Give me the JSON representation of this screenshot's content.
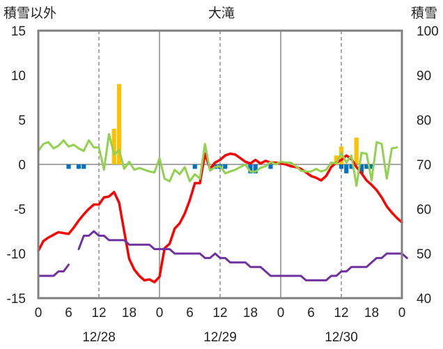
{
  "chart_data": {
    "type": "line",
    "title": "大滝",
    "y_left_label": "積雪以外",
    "y_right_label": "積雪",
    "y_left_range": [
      -15,
      15
    ],
    "y_right_range": [
      40,
      100
    ],
    "y_left_ticks": [
      "15",
      "10",
      "5",
      "0",
      "-5",
      "-10",
      "-15"
    ],
    "y_right_ticks": [
      "100",
      "90",
      "80",
      "70",
      "60",
      "50",
      "40"
    ],
    "x_range_hours": [
      0,
      72
    ],
    "x_tick_labels": [
      "0",
      "6",
      "12",
      "18",
      "0",
      "6",
      "12",
      "18",
      "0",
      "6",
      "12",
      "18",
      "0"
    ],
    "date_labels": [
      "12/28",
      "12/29",
      "12/30"
    ],
    "grid": "dashed vertical at 12h, solid vertical at day boundaries",
    "series": [
      {
        "color": "#ff0000",
        "axis": "left",
        "points": [
          [
            0,
            -9.7
          ],
          [
            1,
            -8.6
          ],
          [
            2,
            -8.2
          ],
          [
            3,
            -7.9
          ],
          [
            4,
            -7.6
          ],
          [
            5,
            -7.7
          ],
          [
            6,
            -7.8
          ],
          [
            7,
            -7.1
          ],
          [
            8,
            -6.3
          ],
          [
            9,
            -5.6
          ],
          [
            10,
            -5.0
          ],
          [
            11,
            -4.5
          ],
          [
            12,
            -4.5
          ],
          [
            13,
            -3.7
          ],
          [
            14,
            -3.6
          ],
          [
            15,
            -3.1
          ],
          [
            16,
            -4.3
          ],
          [
            17,
            -7.5
          ],
          [
            18,
            -10.6
          ],
          [
            19,
            -11.8
          ],
          [
            20,
            -12.5
          ],
          [
            21,
            -13.0
          ],
          [
            22,
            -12.9
          ],
          [
            23,
            -13.2
          ],
          [
            24,
            -12.6
          ],
          [
            25,
            -9.4
          ],
          [
            26,
            -8.9
          ],
          [
            27,
            -7.2
          ],
          [
            28,
            -6.6
          ],
          [
            29,
            -5.5
          ],
          [
            30,
            -4.0
          ],
          [
            31,
            -2.1
          ],
          [
            32,
            -2.1
          ],
          [
            33,
            1.2
          ],
          [
            34,
            -0.5
          ],
          [
            35,
            0.2
          ],
          [
            36,
            0.5
          ],
          [
            37,
            1.0
          ],
          [
            38,
            1.2
          ],
          [
            39,
            1.1
          ],
          [
            40,
            0.7
          ],
          [
            41,
            0.3
          ],
          [
            42,
            0.1
          ],
          [
            43,
            0.5
          ],
          [
            44,
            0.1
          ],
          [
            45,
            0.4
          ],
          [
            46,
            0.2
          ],
          [
            47,
            0.2
          ],
          [
            48,
            0.1
          ],
          [
            49,
            0.0
          ],
          [
            50,
            -0.2
          ],
          [
            51,
            -0.3
          ],
          [
            52,
            -0.5
          ],
          [
            53,
            -0.9
          ],
          [
            54,
            -1.3
          ],
          [
            55,
            -1.5
          ],
          [
            56,
            -1.8
          ],
          [
            57,
            -1.3
          ],
          [
            58,
            -0.3
          ],
          [
            59,
            0.2
          ],
          [
            60,
            0.5
          ],
          [
            61,
            1.0
          ],
          [
            62,
            0.6
          ],
          [
            63,
            -0.3
          ],
          [
            64,
            -1.0
          ],
          [
            65,
            -1.8
          ],
          [
            66,
            -2.3
          ],
          [
            67,
            -2.9
          ],
          [
            68,
            -3.7
          ],
          [
            69,
            -4.7
          ],
          [
            70,
            -5.4
          ],
          [
            71,
            -6.0
          ],
          [
            72,
            -6.5
          ]
        ]
      },
      {
        "color": "#92d050",
        "axis": "left",
        "points": [
          [
            0,
            1.5
          ],
          [
            1,
            2.3
          ],
          [
            2,
            2.5
          ],
          [
            3,
            1.8
          ],
          [
            4,
            2.1
          ],
          [
            5,
            2.7
          ],
          [
            6,
            2.0
          ],
          [
            7,
            2.2
          ],
          [
            8,
            1.8
          ],
          [
            9,
            1.5
          ],
          [
            10,
            2.7
          ],
          [
            11,
            1.9
          ],
          [
            12,
            1.9
          ],
          [
            13,
            -0.6
          ],
          [
            14,
            3.4
          ],
          [
            15,
            1.1
          ],
          [
            16,
            1.6
          ],
          [
            17,
            -0.5
          ],
          [
            18,
            0.3
          ],
          [
            19,
            -0.6
          ],
          [
            20,
            -0.4
          ],
          [
            21,
            -0.6
          ],
          [
            22,
            -0.8
          ],
          [
            23,
            -0.9
          ],
          [
            24,
            0.7
          ],
          [
            25,
            -1.6
          ],
          [
            26,
            -1.9
          ],
          [
            27,
            -0.6
          ],
          [
            28,
            -1.1
          ],
          [
            29,
            -0.3
          ],
          [
            30,
            -1.9
          ],
          [
            31,
            -1.1
          ],
          [
            32,
            -1.6
          ],
          [
            33,
            2.3
          ],
          [
            34,
            -0.7
          ],
          [
            35,
            -0.3
          ],
          [
            36,
            -0.2
          ],
          [
            37,
            -1.0
          ],
          [
            38,
            -0.8
          ],
          [
            39,
            -0.6
          ],
          [
            40,
            -0.3
          ],
          [
            41,
            0.0
          ],
          [
            42,
            -0.8
          ],
          [
            43,
            -0.8
          ],
          [
            44,
            -0.4
          ],
          [
            45,
            -0.2
          ],
          [
            46,
            0.3
          ],
          [
            47,
            0.0
          ],
          [
            48,
            0.3
          ],
          [
            49,
            0.2
          ],
          [
            50,
            0.2
          ],
          [
            51,
            -0.2
          ],
          [
            52,
            -0.7
          ],
          [
            53,
            -0.8
          ],
          [
            54,
            -0.8
          ],
          [
            55,
            -0.5
          ],
          [
            56,
            -0.8
          ],
          [
            57,
            -0.6
          ],
          [
            58,
            0.2
          ],
          [
            59,
            0.1
          ],
          [
            60,
            1.3
          ],
          [
            61,
            0.2
          ],
          [
            62,
            1.0
          ],
          [
            63,
            -2.4
          ],
          [
            64,
            1.3
          ],
          [
            65,
            1.2
          ],
          [
            66,
            -1.8
          ],
          [
            67,
            2.5
          ],
          [
            68,
            2.3
          ],
          [
            69,
            -1.6
          ],
          [
            70,
            1.8
          ],
          [
            71,
            1.9
          ]
        ]
      },
      {
        "color": "#7030a0",
        "axis": "right",
        "segments": [
          [
            [
              0,
              45
            ],
            [
              1,
              45
            ],
            [
              2,
              45
            ],
            [
              3,
              45
            ],
            [
              4,
              46
            ],
            [
              5,
              46
            ],
            [
              6,
              47.5
            ]
          ],
          [
            [
              8,
              51
            ],
            [
              9,
              54
            ],
            [
              10,
              54
            ],
            [
              11,
              55
            ],
            [
              12,
              54
            ],
            [
              13,
              54
            ],
            [
              14,
              53
            ],
            [
              15,
              53
            ],
            [
              16,
              53
            ],
            [
              17,
              53
            ],
            [
              18,
              52
            ],
            [
              19,
              52
            ],
            [
              20,
              52
            ],
            [
              21,
              52
            ],
            [
              22,
              52
            ],
            [
              23,
              51
            ],
            [
              24,
              51
            ],
            [
              25,
              51
            ],
            [
              26,
              51
            ],
            [
              27,
              50
            ],
            [
              28,
              50
            ],
            [
              29,
              50
            ],
            [
              30,
              50
            ],
            [
              31,
              50
            ],
            [
              32,
              50
            ],
            [
              33,
              49
            ],
            [
              34,
              49
            ],
            [
              35,
              50
            ],
            [
              36,
              49
            ],
            [
              37,
              49
            ],
            [
              38,
              48
            ],
            [
              39,
              48
            ],
            [
              40,
              48
            ],
            [
              41,
              48
            ],
            [
              42,
              47
            ],
            [
              43,
              47
            ],
            [
              44,
              47
            ],
            [
              45,
              46
            ],
            [
              46,
              45
            ],
            [
              47,
              45
            ],
            [
              48,
              45
            ],
            [
              49,
              45
            ],
            [
              50,
              45
            ],
            [
              51,
              45
            ],
            [
              52,
              45
            ],
            [
              53,
              44
            ],
            [
              54,
              44
            ],
            [
              55,
              44
            ],
            [
              56,
              44
            ],
            [
              57,
              44
            ],
            [
              58,
              45
            ],
            [
              59,
              45
            ],
            [
              60,
              46
            ],
            [
              61,
              46
            ],
            [
              62,
              47
            ],
            [
              63,
              47
            ],
            [
              64,
              47
            ],
            [
              65,
              47
            ],
            [
              66,
              48
            ],
            [
              67,
              49
            ],
            [
              68,
              49
            ],
            [
              69,
              50
            ],
            [
              70,
              50
            ],
            [
              71,
              50
            ],
            [
              72,
              50
            ],
            [
              73,
              49
            ]
          ]
        ]
      },
      {
        "color": "#ffc000",
        "axis": "left",
        "kind": "bar",
        "bars": [
          [
            15,
            4.0
          ],
          [
            16,
            9.0
          ],
          [
            59,
            1.0
          ],
          [
            60,
            2.0
          ],
          [
            63,
            3.0
          ]
        ]
      },
      {
        "color": "#0070c0",
        "axis": "left",
        "kind": "bar",
        "bars": [
          [
            6,
            -0.5
          ],
          [
            8,
            -0.5
          ],
          [
            9,
            -0.5
          ],
          [
            31,
            -0.5
          ],
          [
            35,
            -0.5
          ],
          [
            36,
            -0.5
          ],
          [
            37,
            -0.5
          ],
          [
            42,
            -1.0
          ],
          [
            43,
            -1.0
          ],
          [
            46,
            -0.5
          ],
          [
            60,
            -0.5
          ],
          [
            61,
            -1.0
          ],
          [
            62,
            -0.5
          ],
          [
            64,
            -1.0
          ],
          [
            65,
            -0.5
          ],
          [
            66,
            -0.5
          ]
        ]
      }
    ]
  }
}
